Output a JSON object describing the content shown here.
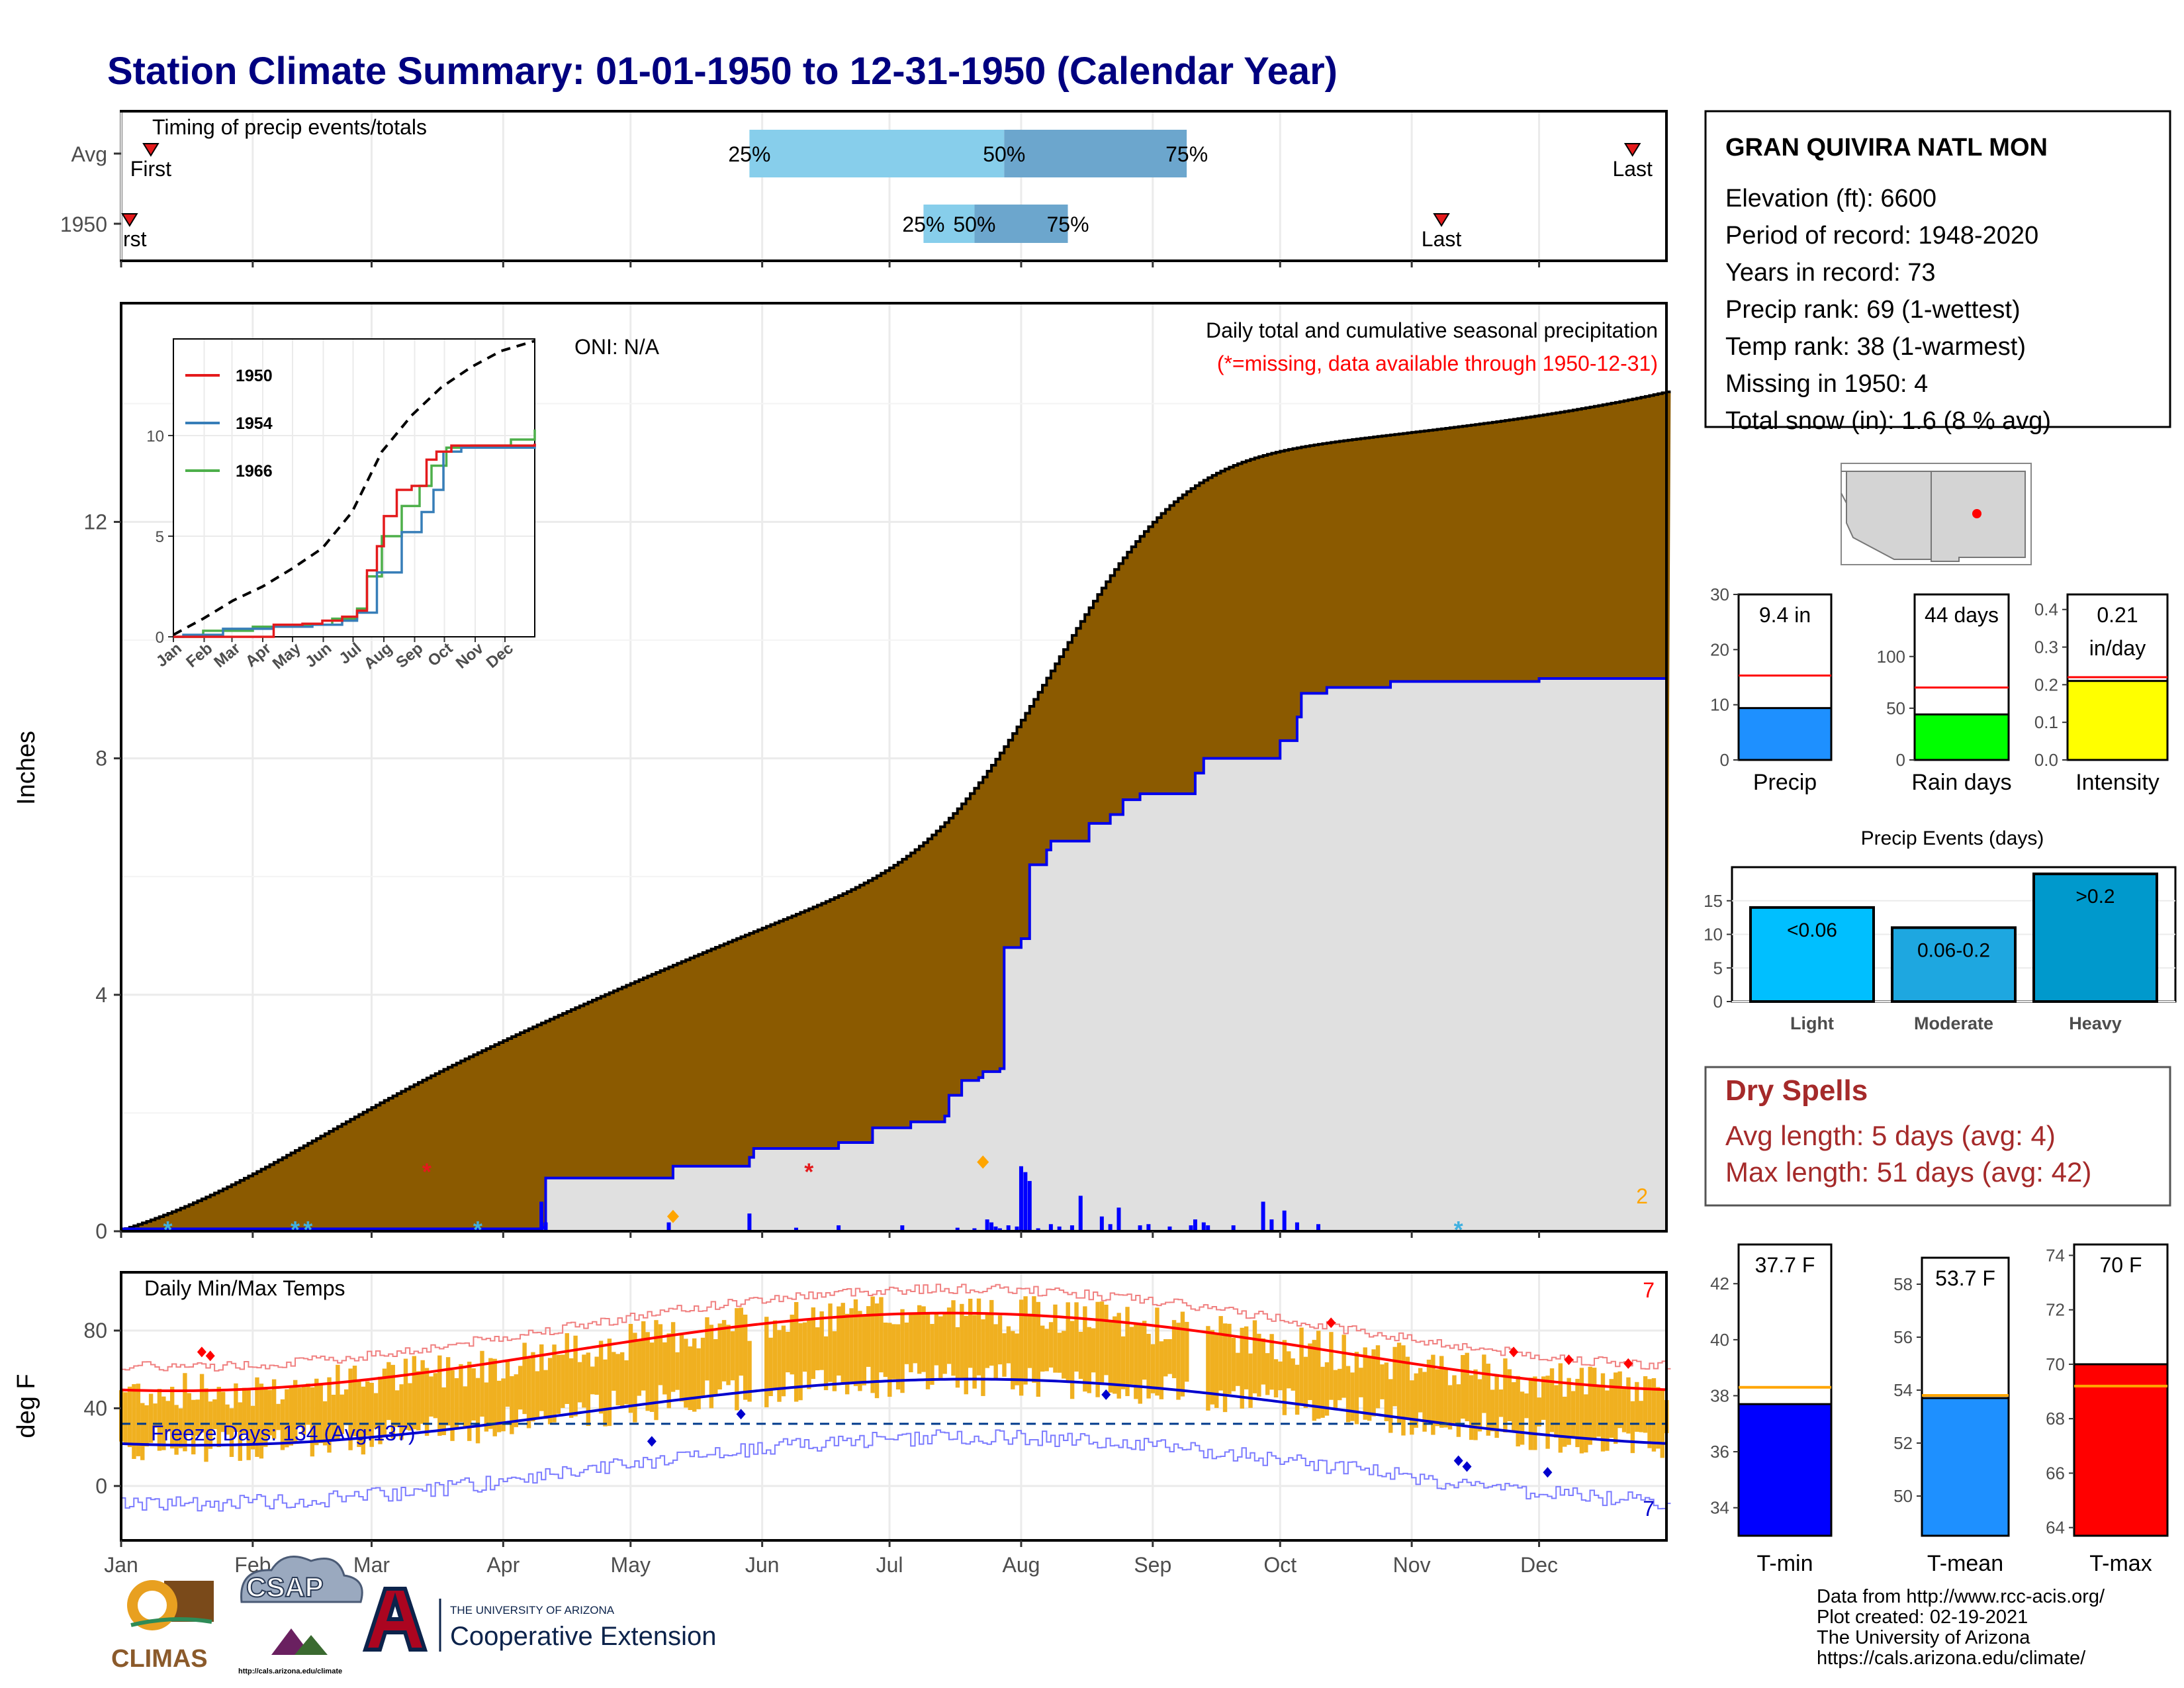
{
  "title": "Station Climate Summary: 01-01-1950 to 12-31-1950 (Calendar Year)",
  "months": [
    "Jan",
    "Feb",
    "Mar",
    "Apr",
    "May",
    "Jun",
    "Jul",
    "Aug",
    "Sep",
    "Oct",
    "Nov",
    "Dec"
  ],
  "timing": {
    "title": "Timing of precip events/totals",
    "rows": [
      {
        "label": "Avg",
        "first_doy": 8,
        "last_doy": 357,
        "q25": 149,
        "q50": 209,
        "q75": 252,
        "q25_label": "25%",
        "q50_label": "50%",
        "q75_label": "75%",
        "first_label": "First",
        "last_label": "Last"
      },
      {
        "label": "1950",
        "first_doy": 3,
        "last_doy": 312,
        "q25": 190,
        "q50": 202,
        "q75": 224,
        "q25_label": "25%",
        "q50_label": "50%",
        "q75_label": "75%",
        "first_label": "rst",
        "last_label": "Last"
      }
    ],
    "colors": {
      "light": "#87ceeb",
      "mid": "#6ca6cd",
      "marker": "#e41a1c"
    }
  },
  "precip_panel": {
    "ylabel": "Inches",
    "yticks": [
      0,
      4,
      8,
      12
    ],
    "ylim": [
      0,
      15.7
    ],
    "title": "Daily total and cumulative seasonal precipitation",
    "subtitle": "(*=missing, data available through 1950-12-31)",
    "oni": "ONI: N/A",
    "missing_count": "2",
    "avg_cum_total": 14.2,
    "avg_fill": "#8b5a00",
    "year_fill": "#e0e0e0",
    "year_line": "#0000ee",
    "year_cum_steps": [
      [
        1,
        0.04
      ],
      [
        100,
        0.06
      ],
      [
        101,
        0.9
      ],
      [
        130,
        0.9
      ],
      [
        131,
        1.1
      ],
      [
        149,
        1.25
      ],
      [
        150,
        1.4
      ],
      [
        170,
        1.5
      ],
      [
        178,
        1.75
      ],
      [
        187,
        1.85
      ],
      [
        195,
        1.95
      ],
      [
        196,
        2.3
      ],
      [
        199,
        2.55
      ],
      [
        203,
        2.6
      ],
      [
        204,
        2.7
      ],
      [
        208,
        2.75
      ],
      [
        209,
        4.8
      ],
      [
        213,
        4.95
      ],
      [
        215,
        6.2
      ],
      [
        219,
        6.45
      ],
      [
        220,
        6.6
      ],
      [
        223,
        6.6
      ],
      [
        229,
        6.9
      ],
      [
        234,
        7.05
      ],
      [
        237,
        7.3
      ],
      [
        241,
        7.4
      ],
      [
        242,
        7.4
      ],
      [
        254,
        7.75
      ],
      [
        256,
        8.0
      ],
      [
        260,
        8.0
      ],
      [
        272,
        8.0
      ],
      [
        274,
        8.3
      ],
      [
        278,
        8.7
      ],
      [
        279,
        9.1
      ],
      [
        285,
        9.2
      ],
      [
        300,
        9.3
      ],
      [
        320,
        9.3
      ],
      [
        335,
        9.35
      ],
      [
        365,
        9.35
      ]
    ],
    "daily_bars": [
      [
        100,
        0.5
      ],
      [
        101,
        0.15
      ],
      [
        130,
        0.15
      ],
      [
        149,
        0.3
      ],
      [
        160,
        0.06
      ],
      [
        170,
        0.1
      ],
      [
        185,
        0.1
      ],
      [
        198,
        0.06
      ],
      [
        202,
        0.05
      ],
      [
        205,
        0.2
      ],
      [
        206,
        0.15
      ],
      [
        207,
        0.08
      ],
      [
        208,
        0.05
      ],
      [
        210,
        0.1
      ],
      [
        212,
        0.08
      ],
      [
        213,
        1.1
      ],
      [
        214,
        1.0
      ],
      [
        215,
        0.85
      ],
      [
        217,
        0.05
      ],
      [
        220,
        0.12
      ],
      [
        222,
        0.08
      ],
      [
        225,
        0.1
      ],
      [
        227,
        0.6
      ],
      [
        232,
        0.25
      ],
      [
        234,
        0.12
      ],
      [
        236,
        0.4
      ],
      [
        241,
        0.1
      ],
      [
        243,
        0.12
      ],
      [
        248,
        0.08
      ],
      [
        253,
        0.1
      ],
      [
        254,
        0.2
      ],
      [
        256,
        0.15
      ],
      [
        257,
        0.1
      ],
      [
        263,
        0.1
      ],
      [
        270,
        0.5
      ],
      [
        272,
        0.2
      ],
      [
        275,
        0.35
      ],
      [
        278,
        0.15
      ],
      [
        283,
        0.12
      ]
    ],
    "events": [
      {
        "doy": 12,
        "y": 0.02,
        "shape": "star",
        "color": "#40b0e0"
      },
      {
        "doy": 42,
        "y": 0.02,
        "shape": "star",
        "color": "#40b0e0"
      },
      {
        "doy": 45,
        "y": 0.02,
        "shape": "star",
        "color": "#40b0e0"
      },
      {
        "doy": 85,
        "y": 0.02,
        "shape": "star",
        "color": "#40b0e0"
      },
      {
        "doy": 316,
        "y": 0.02,
        "shape": "star",
        "color": "#40b0e0"
      },
      {
        "doy": 73,
        "y": 1.0,
        "shape": "star",
        "color": "#e41a1c"
      },
      {
        "doy": 163,
        "y": 1.0,
        "shape": "star",
        "color": "#e41a1c"
      },
      {
        "doy": 131,
        "y": 0.25,
        "shape": "diamond",
        "color": "#ffa500"
      },
      {
        "doy": 204,
        "y": 1.17,
        "shape": "diamond",
        "color": "#ffa500"
      }
    ]
  },
  "inset": {
    "series": [
      {
        "name": "1950",
        "color": "#e41a1c"
      },
      {
        "name": "1954",
        "color": "#377eb8"
      },
      {
        "name": "1966",
        "color": "#4daf4a"
      }
    ],
    "yticks": [
      0,
      5,
      10
    ],
    "ylim": [
      0,
      14.8
    ],
    "months": [
      "Jan",
      "Feb",
      "Mar",
      "Apr",
      "May",
      "Jun",
      "Jul",
      "Aug",
      "Sep",
      "Oct",
      "Nov",
      "Dec"
    ],
    "avg_points": [
      [
        0,
        0.1
      ],
      [
        30,
        0.9
      ],
      [
        60,
        1.8
      ],
      [
        90,
        2.5
      ],
      [
        120,
        3.4
      ],
      [
        150,
        4.4
      ],
      [
        180,
        6.2
      ],
      [
        210,
        9.2
      ],
      [
        240,
        11.0
      ],
      [
        270,
        12.4
      ],
      [
        300,
        13.4
      ],
      [
        330,
        14.2
      ],
      [
        364,
        14.7
      ]
    ],
    "s1950": [
      [
        0,
        0
      ],
      [
        100,
        0
      ],
      [
        101,
        0.6
      ],
      [
        130,
        0.65
      ],
      [
        150,
        0.8
      ],
      [
        170,
        1.0
      ],
      [
        185,
        1.3
      ],
      [
        195,
        3.3
      ],
      [
        205,
        4.5
      ],
      [
        212,
        6.0
      ],
      [
        225,
        7.3
      ],
      [
        240,
        7.5
      ],
      [
        255,
        8.8
      ],
      [
        265,
        9.2
      ],
      [
        280,
        9.5
      ],
      [
        364,
        9.6
      ]
    ],
    "s1954": [
      [
        0,
        0
      ],
      [
        10,
        0.1
      ],
      [
        50,
        0.4
      ],
      [
        100,
        0.5
      ],
      [
        140,
        0.6
      ],
      [
        170,
        0.8
      ],
      [
        185,
        1.2
      ],
      [
        205,
        3.2
      ],
      [
        230,
        5.2
      ],
      [
        250,
        6.2
      ],
      [
        262,
        7.3
      ],
      [
        272,
        9.2
      ],
      [
        290,
        9.4
      ],
      [
        364,
        9.6
      ]
    ],
    "s1966": [
      [
        0,
        0
      ],
      [
        30,
        0.3
      ],
      [
        80,
        0.5
      ],
      [
        120,
        0.6
      ],
      [
        160,
        0.9
      ],
      [
        185,
        1.4
      ],
      [
        195,
        3.0
      ],
      [
        210,
        5.0
      ],
      [
        230,
        6.5
      ],
      [
        248,
        7.5
      ],
      [
        260,
        8.5
      ],
      [
        275,
        9.4
      ],
      [
        300,
        9.5
      ],
      [
        340,
        9.8
      ],
      [
        364,
        10.3
      ]
    ]
  },
  "temp_panel": {
    "ylabel": "deg F",
    "title": "Daily Min/Max Temps",
    "yticks": [
      0,
      40,
      80
    ],
    "ylim": [
      -28,
      110
    ],
    "freeze_label": "Freeze Days: 134 (Avg:137)",
    "freeze_line": 32,
    "record_high_count": "7",
    "record_low_count": "7",
    "colors": {
      "bar": "#f0b020",
      "max": "#ff0000",
      "min": "#0000cd",
      "recmax": "#f08080",
      "recmin": "#7b7bff"
    }
  },
  "station": {
    "name": "GRAN QUIVIRA NATL MON",
    "lines": [
      "Elevation (ft): 6600",
      "Period of record: 1948-2020",
      "Years in record: 73",
      "Precip rank: 69 (1-wettest)",
      "Temp rank: 38 (1-warmest)",
      "Missing in 1950: 4",
      "Total snow (in): 1.6 (8 % avg)"
    ]
  },
  "precip_bars": [
    {
      "label": "Precip",
      "value": 9.4,
      "avg": 15.3,
      "text": "9.4 in",
      "ylim": [
        0,
        30
      ],
      "yticks": [
        0,
        10,
        20,
        30
      ],
      "color": "#1e90ff"
    },
    {
      "label": "Rain days",
      "value": 44,
      "avg": 70,
      "text": "44 days",
      "ylim": [
        0,
        160
      ],
      "yticks": [
        0,
        50,
        100
      ],
      "color": "#00ff00"
    },
    {
      "label": "Intensity",
      "value": 0.21,
      "avg": 0.22,
      "text": "0.21",
      "text2": "in/day",
      "ylim": [
        0,
        0.44
      ],
      "yticks": [
        0.0,
        0.1,
        0.2,
        0.3,
        0.4
      ],
      "color": "#ffff00"
    }
  ],
  "events_chart": {
    "title": "Precip Events (days)",
    "categories": [
      "Light",
      "Moderate",
      "Heavy"
    ],
    "bar_labels": [
      "<0.06",
      "0.06-0.2",
      ">0.2"
    ],
    "values": [
      14,
      11,
      19
    ],
    "ylim": [
      0,
      20
    ],
    "yticks": [
      0,
      5,
      10,
      15
    ],
    "colors": [
      "#00bfff",
      "#1ea7e0",
      "#0099cc"
    ]
  },
  "dry_spells": {
    "title": "Dry Spells",
    "avg": "Avg length: 5 days (avg: 4)",
    "max": "Max length: 51 days (avg: 42)",
    "color": "#a52a2a"
  },
  "temp_bars": [
    {
      "label": "T-min",
      "value": 37.7,
      "avg": 38.3,
      "text": "37.7 F",
      "ylim": [
        33,
        43.4
      ],
      "yticks": [
        34,
        36,
        38,
        40,
        42
      ],
      "color": "#0000ff"
    },
    {
      "label": "T-mean",
      "value": 53.7,
      "avg": 53.8,
      "text": "53.7 F",
      "ylim": [
        48.5,
        59
      ],
      "yticks": [
        50,
        52,
        54,
        56,
        58
      ],
      "color": "#1e90ff"
    },
    {
      "label": "T-max",
      "value": 70,
      "avg": 69.2,
      "text": "70 F",
      "ylim": [
        63.7,
        74.4
      ],
      "yticks": [
        64,
        66,
        68,
        70,
        72,
        74
      ],
      "color": "#ff0000"
    }
  ],
  "credits": [
    "Data from http://www.rcc-acis.org/",
    "Plot created: 02-19-2021",
    "The University of Arizona",
    "https://cals.arizona.edu/climate/"
  ],
  "logos": {
    "climas": "CLIMAS",
    "csap": "CSAP",
    "csap_url": "http://cals.arizona.edu/climate",
    "ua_small": "THE UNIVERSITY OF ARIZONA",
    "ua_big": "Cooperative Extension"
  }
}
